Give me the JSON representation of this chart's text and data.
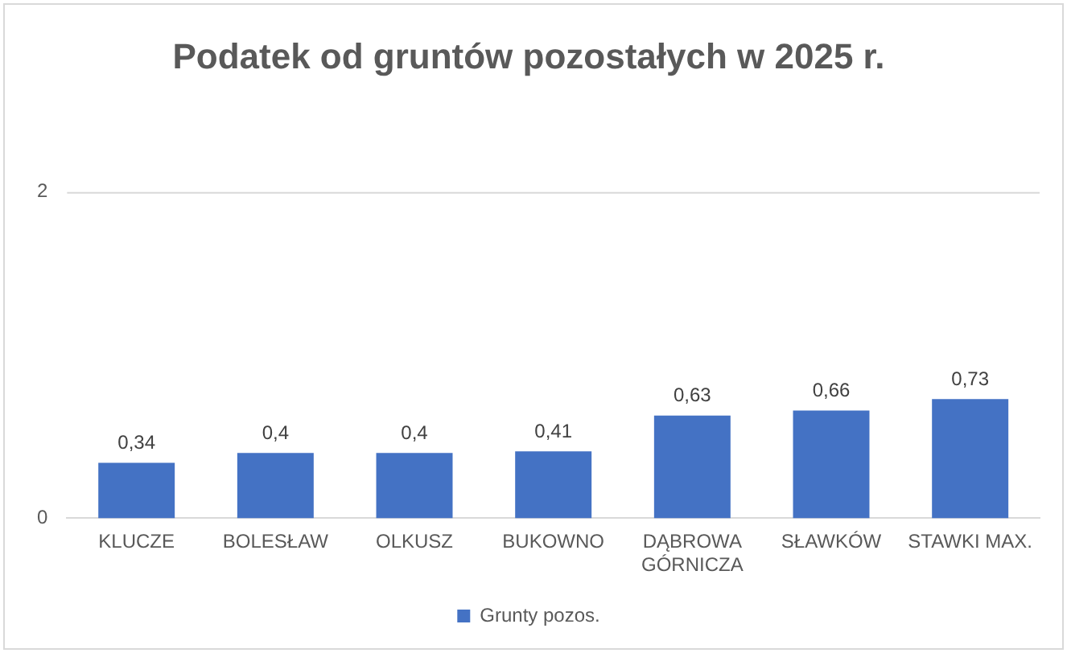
{
  "chart_data": {
    "type": "bar",
    "title": "Podatek od gruntów pozostałych w 2025 r.",
    "categories": [
      "KLUCZE",
      "BOLESŁAW",
      "OLKUSZ",
      "BUKOWNO",
      "DĄBROWA GÓRNICZA",
      "SŁAWKÓW",
      "STAWKI MAX."
    ],
    "series": [
      {
        "name": "Grunty pozos.",
        "color": "#4472c4",
        "values": [
          0.34,
          0.4,
          0.4,
          0.41,
          0.63,
          0.66,
          0.73
        ],
        "value_labels": [
          "0,34",
          "0,4",
          "0,4",
          "0,41",
          "0,63",
          "0,66",
          "0,73"
        ]
      }
    ],
    "ylim": [
      0,
      2
    ],
    "yticks": [
      0,
      2
    ],
    "legend": "bottom"
  }
}
